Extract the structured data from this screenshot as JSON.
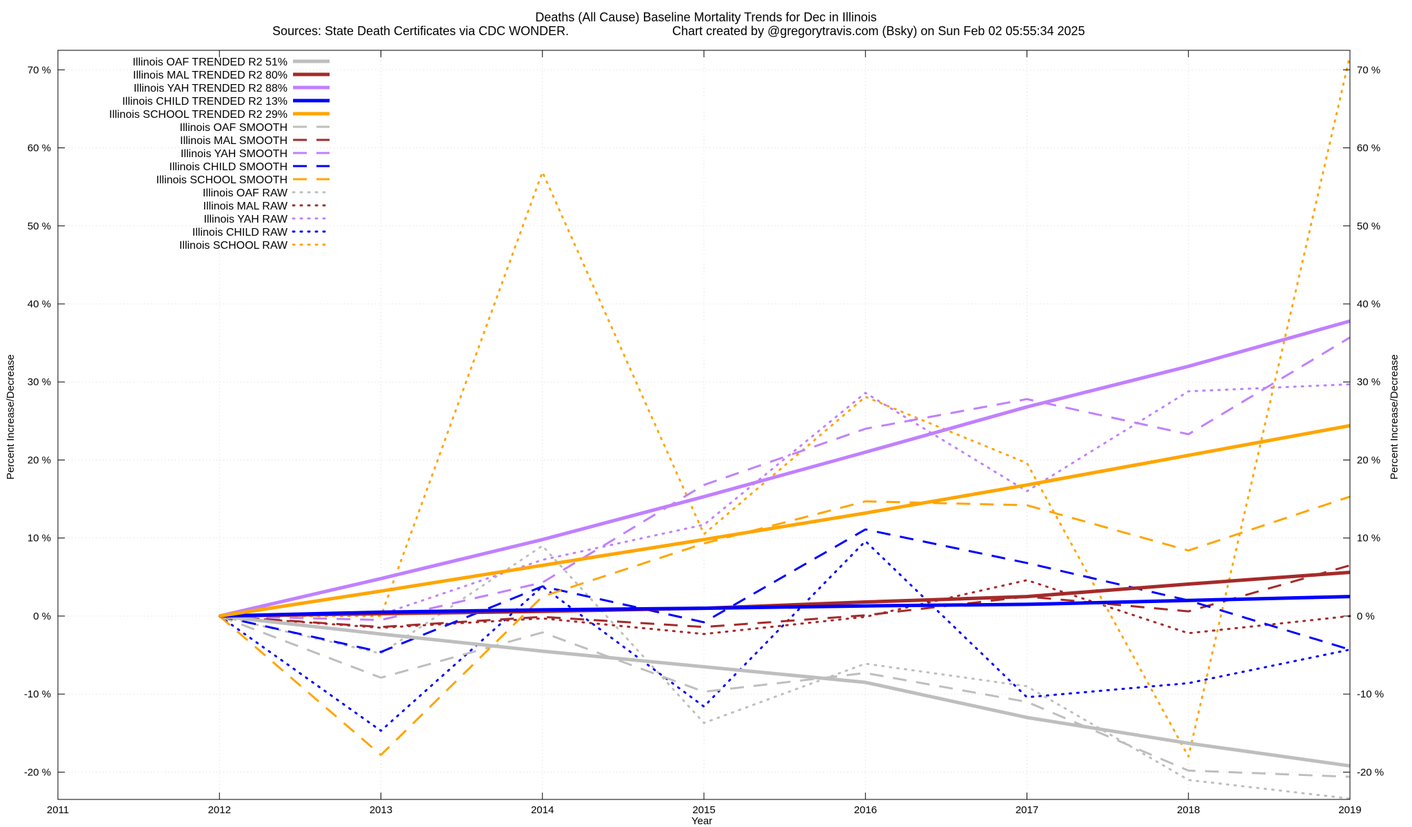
{
  "chart_data": {
    "type": "line",
    "title": "Deaths (All Cause)  Baseline Mortality Trends for Dec in Illinois",
    "subtitle_left": "Sources: State Death Certificates via CDC WONDER.",
    "subtitle_right": "Chart created by @gregorytravis.com (Bsky) on Sun Feb 02 05:55:34 2025",
    "xlabel": "Year",
    "ylabel": "Percent Increase/Decrease",
    "y2label": "Percent Increase/Decrease",
    "xlim": [
      2011,
      2019
    ],
    "ylim": [
      -23.5,
      72.5
    ],
    "x_ticks": [
      "2011",
      "2012",
      "2013",
      "2014",
      "2015",
      "2016",
      "2017",
      "2018",
      "2019"
    ],
    "y_ticks": [
      {
        "value": -20,
        "label": "-20 %"
      },
      {
        "value": -10,
        "label": "-10 %"
      },
      {
        "value": 0,
        "label": "0 %"
      },
      {
        "value": 10,
        "label": "10 %"
      },
      {
        "value": 20,
        "label": "20 %"
      },
      {
        "value": 30,
        "label": "30 %"
      },
      {
        "value": 40,
        "label": "40 %"
      },
      {
        "value": 50,
        "label": "50 %"
      },
      {
        "value": 60,
        "label": "60 %"
      },
      {
        "value": 70,
        "label": "70 %"
      }
    ],
    "grid": true,
    "legend_position": "top-left",
    "x": [
      2012,
      2013,
      2014,
      2015,
      2016,
      2017,
      2018,
      2019
    ],
    "series": [
      {
        "name": "Illinois OAF TRENDED R2  51%",
        "style": "solid",
        "color": "#bebebe",
        "values": [
          0,
          -2.3,
          -4.5,
          -6.5,
          -8.5,
          -13.0,
          -16.3,
          -19.2
        ]
      },
      {
        "name": "Illinois MAL TRENDED R2  80%",
        "style": "solid",
        "color": "#a52a2a",
        "values": [
          0,
          0.3,
          0.6,
          1.0,
          1.8,
          2.5,
          4.1,
          5.6
        ]
      },
      {
        "name": "Illinois YAH TRENDED R2  88%",
        "style": "solid",
        "color": "#c080ff",
        "values": [
          0,
          4.8,
          9.8,
          15.3,
          21.0,
          26.8,
          32.0,
          37.8
        ]
      },
      {
        "name": "Illinois CHILD TRENDED R2  13%",
        "style": "solid",
        "color": "#0000ff",
        "values": [
          0,
          0.5,
          0.8,
          1.0,
          1.3,
          1.5,
          2.0,
          2.5
        ]
      },
      {
        "name": "Illinois SCHOOL TRENDED R2  29%",
        "style": "solid",
        "color": "#ffa500",
        "values": [
          0,
          3.2,
          6.5,
          9.8,
          13.2,
          16.8,
          20.6,
          24.4
        ]
      },
      {
        "name": "Illinois OAF SMOOTH",
        "style": "dashed",
        "color": "#bebebe",
        "values": [
          0,
          -7.9,
          -2.1,
          -9.7,
          -7.3,
          -11.0,
          -19.8,
          -20.6
        ]
      },
      {
        "name": "Illinois MAL SMOOTH",
        "style": "dashed",
        "color": "#a52a2a",
        "values": [
          0,
          -1.4,
          -0.1,
          -1.4,
          0.1,
          2.5,
          0.6,
          6.5
        ]
      },
      {
        "name": "Illinois YAH SMOOTH",
        "style": "dashed",
        "color": "#c080ff",
        "values": [
          0,
          -0.5,
          4.3,
          16.8,
          24.0,
          27.8,
          23.3,
          35.7
        ]
      },
      {
        "name": "Illinois CHILD SMOOTH",
        "style": "dashed",
        "color": "#0000ff",
        "values": [
          0,
          -4.6,
          3.8,
          -0.8,
          11.1,
          6.8,
          2.0,
          -4.3
        ]
      },
      {
        "name": "Illinois SCHOOL SMOOTH",
        "style": "dashed",
        "color": "#ffa500",
        "values": [
          0,
          -17.8,
          2.5,
          9.3,
          14.7,
          14.2,
          8.4,
          15.3
        ]
      },
      {
        "name": "Illinois OAF RAW",
        "style": "dotted",
        "color": "#bebebe",
        "values": [
          0,
          -4.8,
          9.0,
          -13.7,
          -6.1,
          -9.0,
          -21.0,
          -23.4
        ]
      },
      {
        "name": "Illinois MAL RAW",
        "style": "dotted",
        "color": "#a52a2a",
        "values": [
          0,
          -1.5,
          -0.3,
          -2.3,
          -0.1,
          4.6,
          -2.2,
          0.0
        ]
      },
      {
        "name": "Illinois YAH RAW",
        "style": "dotted",
        "color": "#c080ff",
        "values": [
          0,
          0.2,
          7.2,
          11.7,
          28.6,
          16.0,
          28.8,
          29.7
        ]
      },
      {
        "name": "Illinois CHILD RAW",
        "style": "dotted",
        "color": "#0000ff",
        "values": [
          0,
          -14.7,
          3.8,
          -11.6,
          9.6,
          -10.4,
          -8.6,
          -4.3
        ]
      },
      {
        "name": "Illinois SCHOOL RAW",
        "style": "dotted",
        "color": "#ffa500",
        "values": [
          0,
          0.0,
          56.9,
          10.5,
          28.1,
          19.6,
          -18.0,
          71.8
        ]
      }
    ]
  }
}
